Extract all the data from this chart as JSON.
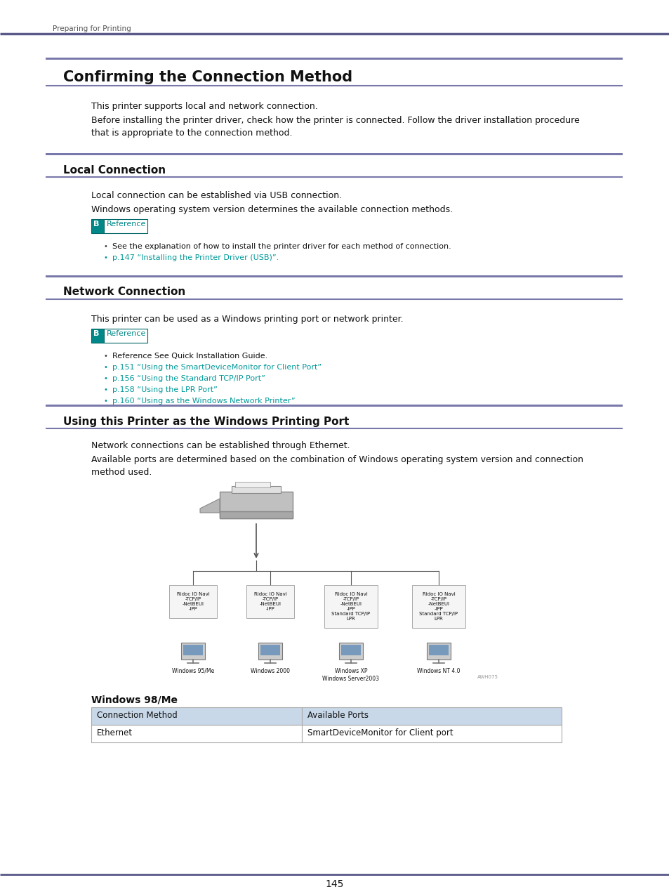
{
  "page_header": "Preparing for Printing",
  "header_line_color": "#5a5a8a",
  "main_title": "Confirming the Connection Method",
  "section_line_color": "#7878aa",
  "para1": "This printer supports local and network connection.",
  "para2": "Before installing the printer driver, check how the printer is connected. Follow the driver installation procedure\nthat is appropriate to the connection method.",
  "section1_title": "Local Connection",
  "section1_para1": "Local connection can be established via USB connection.",
  "section1_para2": "Windows operating system version determines the available connection methods.",
  "ref_label": "Reference",
  "ref_bullet1": "See the explanation of how to install the printer driver for each method of connection.",
  "ref_bullet2_link": "p.147 “Installing the Printer Driver (USB)”.",
  "section2_title": "Network Connection",
  "section2_para1": "This printer can be used as a Windows printing port or network printer.",
  "net_ref_bullet1": "Reference See Quick Installation Guide.",
  "net_ref_bullet2_link": "p.151 “Using the SmartDeviceMonitor for Client Port”",
  "net_ref_bullet3_link": "p.156 “Using the Standard TCP/IP Port”",
  "net_ref_bullet4_link": "p.158 “Using the LPR Port”",
  "net_ref_bullet5_link": "p.160 “Using as the Windows Network Printer”",
  "section3_title": "Using this Printer as the Windows Printing Port",
  "section3_para1": "Network connections can be established through Ethernet.",
  "section3_para2": "Available ports are determined based on the combination of Windows operating system version and connection\nmethod used.",
  "table_header1": "Connection Method",
  "table_header2": "Available Ports",
  "table_row1_col1": "Ethernet",
  "table_row1_col2": "SmartDeviceMonitor for Client port",
  "win98_label": "Windows 98/Me",
  "page_number": "145",
  "background_color": "#ffffff",
  "table_header_bg": "#c8d8e8",
  "table_border_color": "#aaaaaa",
  "link_color": "#009999",
  "teal_color": "#008888",
  "diagram_texts": [
    "Ridoc IO Navi\n-TCP/IP\n-NetBEUI\n-IPP",
    "Ridoc IO Navi\n-TCP/IP\n-NetBEUI\n-IPP",
    "Ridoc IO Navi\n-TCP/IP\n-NetBEUI\n-IPP\nStandard TCP/IP\nLPR",
    "Ridoc IO Navi\n-TCP/IP\n-NetBEUI\n-IPP\nStandard TCP/IP\nLPR"
  ],
  "diagram_labels": [
    "Windows 95/Me",
    "Windows 2000",
    "Windows XP\nWindows Server2003",
    "Windows NT 4.0"
  ],
  "diagram_note": "AWH075"
}
